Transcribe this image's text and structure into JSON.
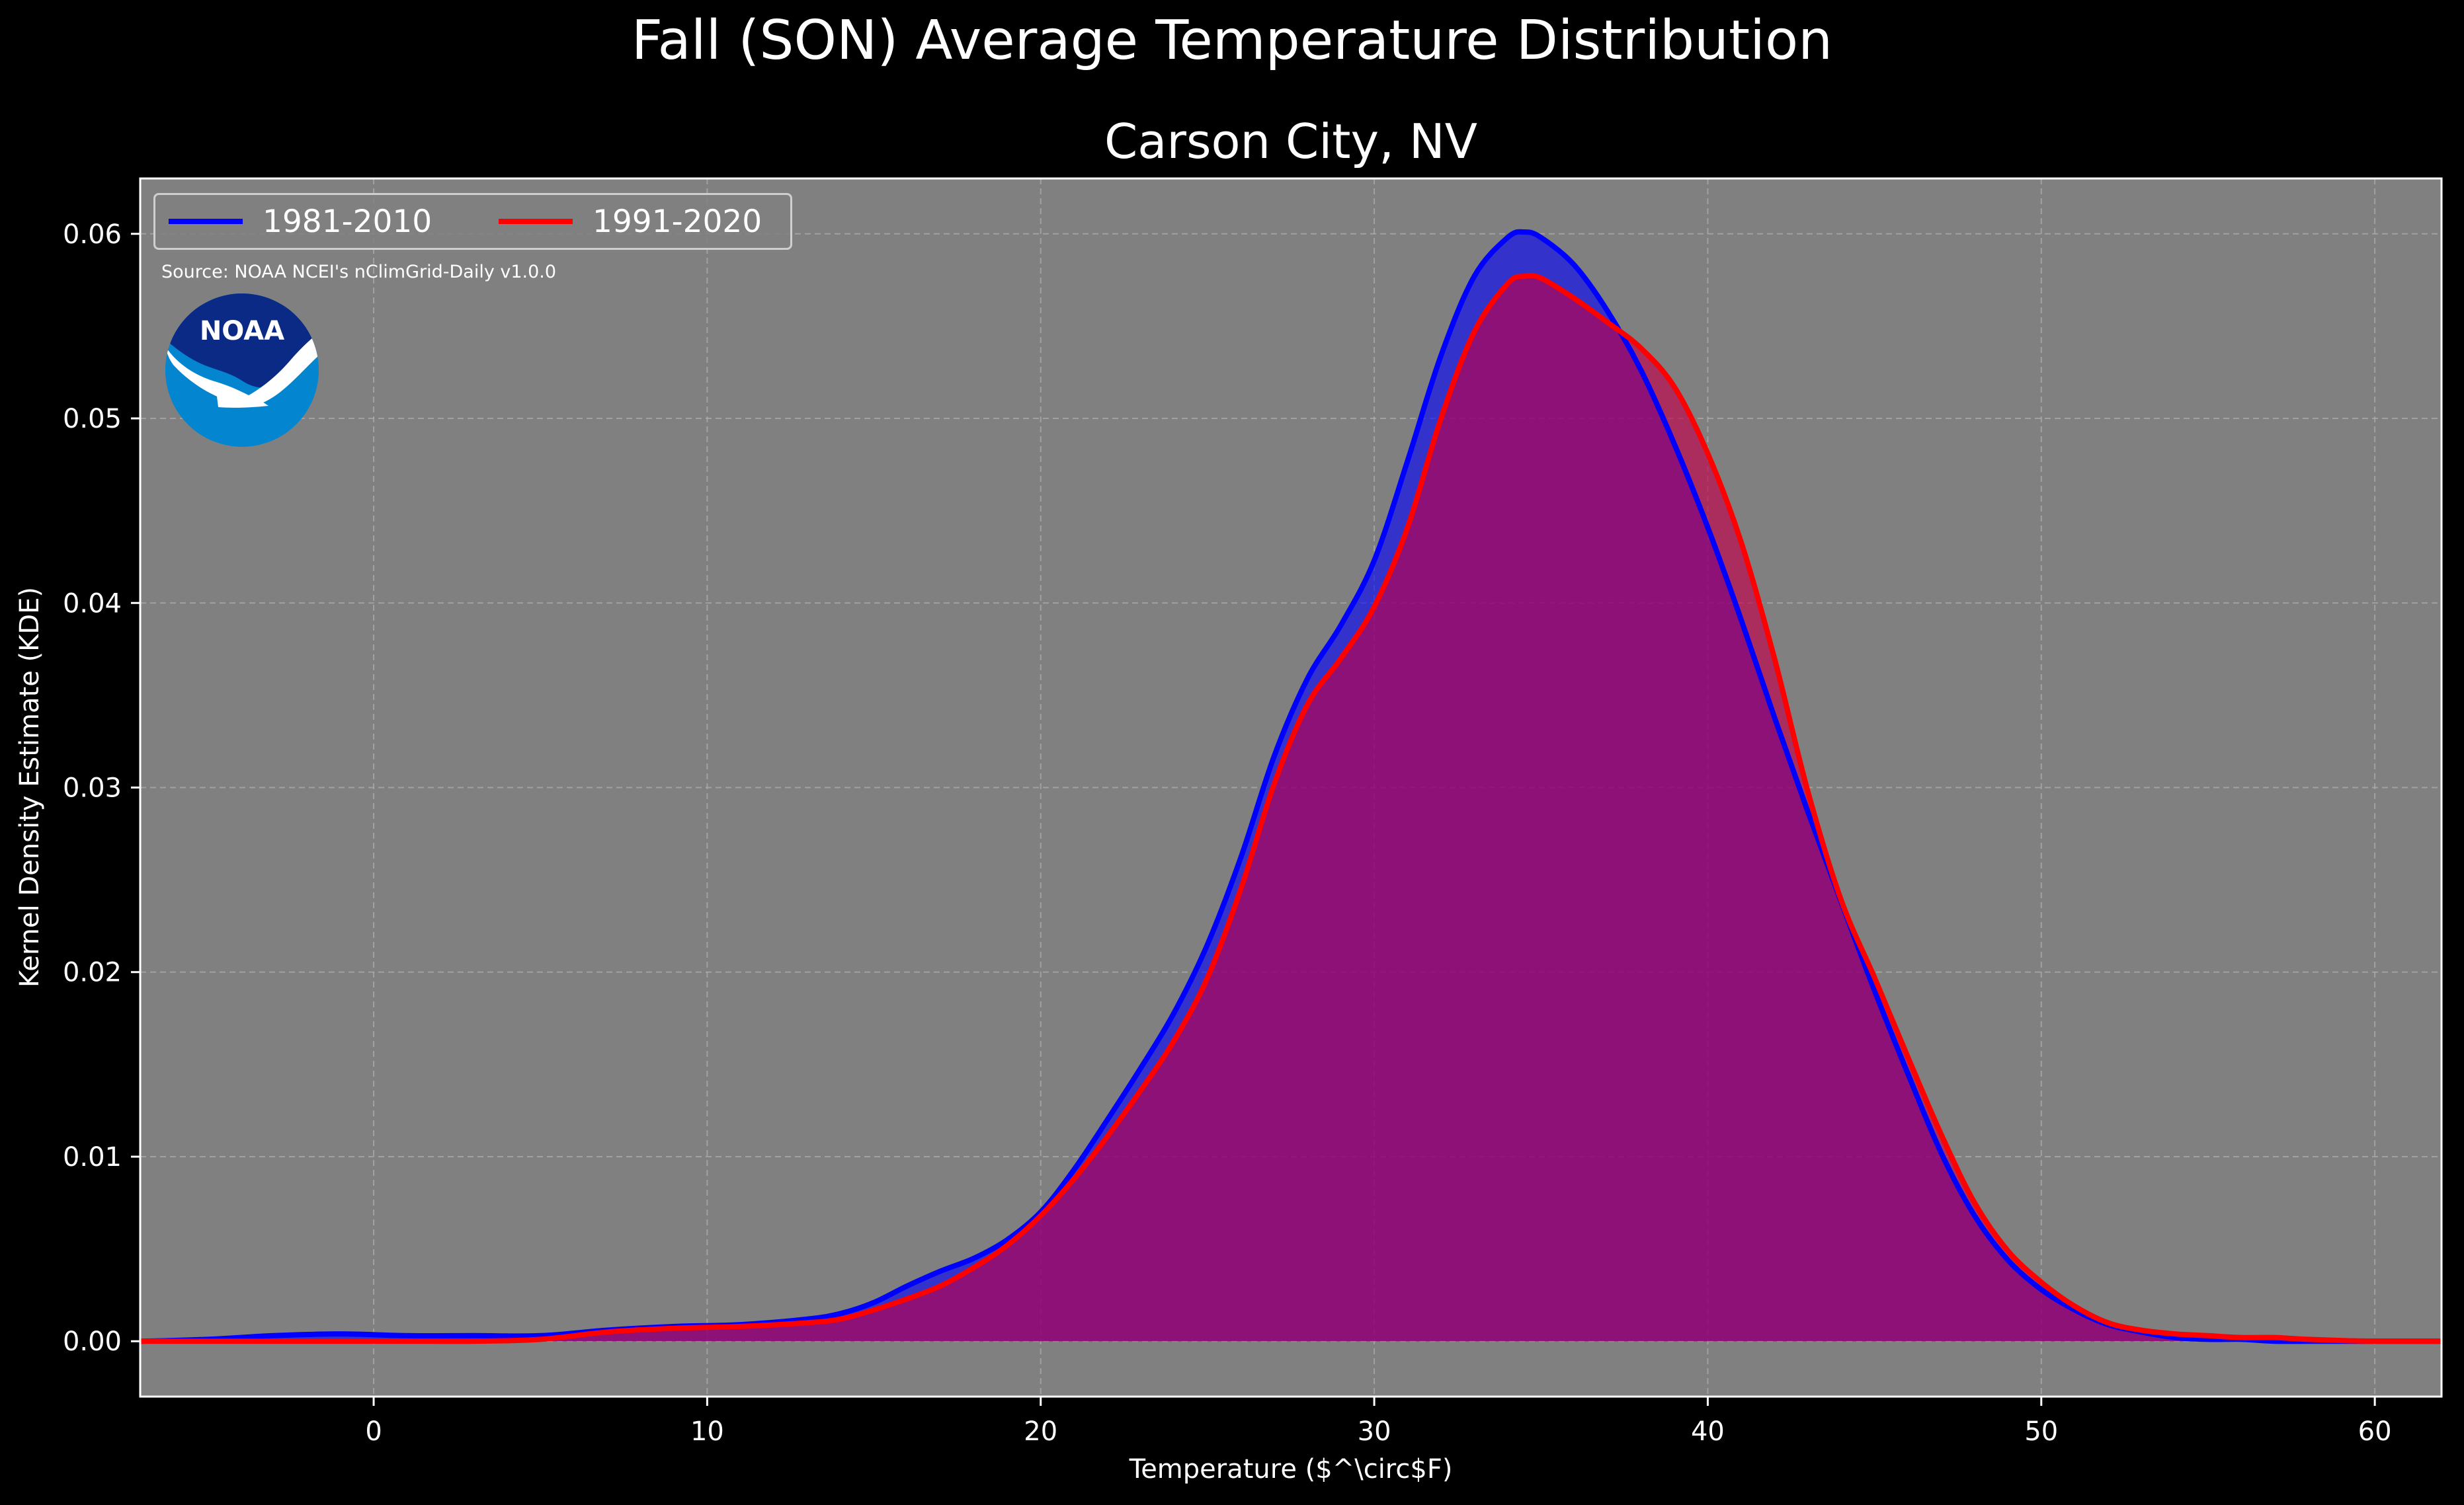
{
  "suptitle": "Fall (SON) Average Temperature Distribution",
  "source_note": "Source: NOAA NCEI's nClimGrid-Daily v1.0.0",
  "logo": {
    "icon": "noaa-logo-icon",
    "text": "NOAA",
    "colors": {
      "dark": "#0a2a86",
      "light": "#0485cf"
    }
  },
  "colors": {
    "page_bg": "#000000",
    "plot_bg": "#808080",
    "grid": "#b0b0b0",
    "text": "#ffffff"
  },
  "chart_data": {
    "type": "area",
    "title": "Carson City, NV",
    "xlabel": "Temperature ($^\\circ$F)",
    "ylabel": "Kernel Density Estimate (KDE)",
    "xlim": [
      -7,
      62
    ],
    "ylim": [
      -0.003,
      0.063
    ],
    "xticks": [
      0,
      10,
      20,
      30,
      40,
      50,
      60
    ],
    "yticks": [
      0.0,
      0.01,
      0.02,
      0.03,
      0.04,
      0.05,
      0.06
    ],
    "xtick_labels": [
      "0",
      "10",
      "20",
      "30",
      "40",
      "50",
      "60"
    ],
    "ytick_labels": [
      "0.00",
      "0.01",
      "0.02",
      "0.03",
      "0.04",
      "0.05",
      "0.06"
    ],
    "grid": true,
    "legend_position": "top-left",
    "x": [
      -7,
      -5,
      -3,
      -1,
      1,
      3,
      5,
      7,
      9,
      11,
      13,
      14,
      15,
      16,
      17,
      18,
      19,
      20,
      21,
      22,
      23,
      24,
      25,
      26,
      27,
      28,
      29,
      30,
      31,
      32,
      33,
      34,
      34.5,
      35,
      36,
      37,
      38,
      39,
      40,
      41,
      42,
      43,
      44,
      45,
      46,
      47,
      48,
      49,
      50,
      51,
      52,
      53,
      54,
      55,
      56,
      57,
      58,
      60,
      62
    ],
    "series": [
      {
        "name": "1981-2010",
        "color": "#0000ff",
        "fill": "#0000ff",
        "values": [
          0.0,
          0.0001,
          0.0003,
          0.0004,
          0.0003,
          0.0003,
          0.0003,
          0.0006,
          0.0008,
          0.0009,
          0.0012,
          0.0015,
          0.0021,
          0.003,
          0.0038,
          0.0045,
          0.0055,
          0.007,
          0.0093,
          0.012,
          0.0148,
          0.0178,
          0.0215,
          0.0262,
          0.0317,
          0.0359,
          0.0388,
          0.0423,
          0.0477,
          0.0534,
          0.0577,
          0.0598,
          0.0601,
          0.0598,
          0.0583,
          0.0558,
          0.0526,
          0.0486,
          0.0441,
          0.0391,
          0.0338,
          0.0287,
          0.0238,
          0.019,
          0.0145,
          0.0102,
          0.0068,
          0.0044,
          0.0028,
          0.0017,
          0.0009,
          0.0005,
          0.0002,
          0.0001,
          0.0001,
          0.0,
          0.0,
          0.0,
          0.0
        ]
      },
      {
        "name": "1991-2020",
        "color": "#ff0000",
        "fill": "#c0004a",
        "values": [
          0.0,
          0.0,
          0.0,
          0.0,
          0.0,
          0.0,
          0.0001,
          0.0005,
          0.0007,
          0.0008,
          0.001,
          0.0012,
          0.0017,
          0.0023,
          0.003,
          0.004,
          0.0052,
          0.0068,
          0.0088,
          0.0111,
          0.0136,
          0.0163,
          0.0197,
          0.0245,
          0.0302,
          0.0345,
          0.037,
          0.0398,
          0.0441,
          0.05,
          0.0547,
          0.0573,
          0.0577,
          0.0576,
          0.0565,
          0.0552,
          0.0538,
          0.0517,
          0.0481,
          0.0433,
          0.037,
          0.0298,
          0.0239,
          0.0197,
          0.0154,
          0.0112,
          0.0075,
          0.0049,
          0.0032,
          0.0019,
          0.001,
          0.0006,
          0.0004,
          0.0003,
          0.0002,
          0.0002,
          0.0001,
          0.0,
          0.0
        ]
      }
    ]
  }
}
